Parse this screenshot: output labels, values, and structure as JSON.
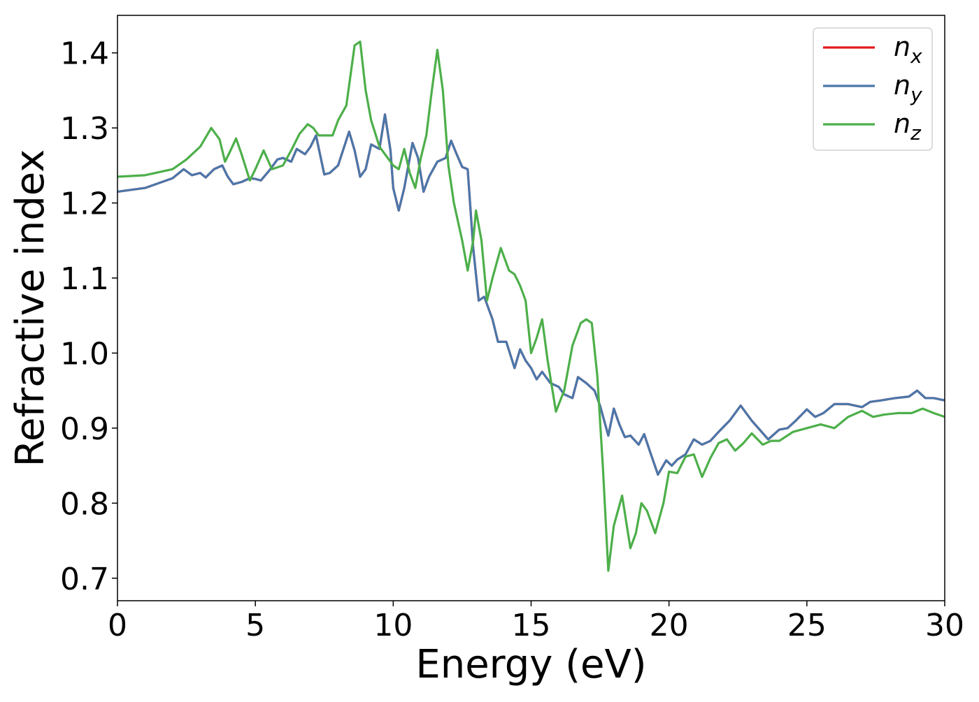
{
  "chart_data": {
    "type": "line",
    "title": "",
    "xlabel": "Energy (eV)",
    "ylabel": "Refractive index",
    "xlim": [
      0,
      30
    ],
    "ylim": [
      0.67,
      1.45
    ],
    "xticks": [
      0,
      5,
      10,
      15,
      20,
      25,
      30
    ],
    "xtick_labels": [
      "0",
      "5",
      "10",
      "15",
      "20",
      "25",
      "30"
    ],
    "yticks": [
      0.7,
      0.8,
      0.9,
      1.0,
      1.1,
      1.2,
      1.3,
      1.4
    ],
    "ytick_labels": [
      "0.7",
      "0.8",
      "0.9",
      "1.0",
      "1.1",
      "1.2",
      "1.3",
      "1.4"
    ],
    "grid": false,
    "legend_position": "top-right",
    "series": [
      {
        "name": "n_x",
        "label_base": "n",
        "label_sub": "x",
        "color": "#e41a1c",
        "x": [
          0,
          1,
          2,
          2.4,
          2.7,
          3.0,
          3.2,
          3.5,
          3.8,
          4.0,
          4.2,
          4.5,
          4.8,
          5.0,
          5.2,
          5.5,
          5.8,
          6.0,
          6.3,
          6.5,
          6.8,
          7.0,
          7.2,
          7.5,
          7.7,
          8.0,
          8.4,
          8.6,
          8.8,
          9.0,
          9.2,
          9.5,
          9.7,
          9.9,
          10.0,
          10.2,
          10.4,
          10.7,
          10.9,
          11.1,
          11.3,
          11.6,
          11.9,
          12.1,
          12.3,
          12.5,
          12.7,
          12.9,
          13.1,
          13.3,
          13.6,
          13.8,
          14.1,
          14.4,
          14.6,
          14.8,
          15.0,
          15.2,
          15.4,
          15.7,
          16.0,
          16.2,
          16.5,
          16.7,
          17.0,
          17.3,
          17.5,
          17.8,
          18.0,
          18.2,
          18.4,
          18.6,
          18.9,
          19.1,
          19.3,
          19.6,
          19.9,
          20.1,
          20.3,
          20.6,
          20.9,
          21.2,
          21.5,
          21.8,
          22.2,
          22.6,
          23.0,
          23.6,
          24.0,
          24.3,
          24.6,
          25.0,
          25.3,
          25.6,
          26.0,
          26.5,
          27.0,
          27.3,
          27.7,
          28.2,
          28.7,
          29.0,
          29.3,
          29.6,
          30.0
        ],
        "y": [
          1.215,
          1.22,
          1.233,
          1.245,
          1.237,
          1.24,
          1.234,
          1.245,
          1.25,
          1.235,
          1.225,
          1.228,
          1.233,
          1.232,
          1.23,
          1.243,
          1.258,
          1.26,
          1.255,
          1.272,
          1.265,
          1.275,
          1.29,
          1.238,
          1.24,
          1.25,
          1.295,
          1.27,
          1.235,
          1.245,
          1.278,
          1.272,
          1.318,
          1.27,
          1.22,
          1.19,
          1.22,
          1.28,
          1.26,
          1.215,
          1.235,
          1.255,
          1.26,
          1.283,
          1.265,
          1.248,
          1.245,
          1.14,
          1.07,
          1.075,
          1.045,
          1.015,
          1.015,
          0.98,
          1.005,
          0.99,
          0.98,
          0.965,
          0.975,
          0.96,
          0.955,
          0.945,
          0.94,
          0.968,
          0.96,
          0.95,
          0.93,
          0.89,
          0.926,
          0.905,
          0.888,
          0.89,
          0.878,
          0.892,
          0.87,
          0.838,
          0.857,
          0.85,
          0.858,
          0.865,
          0.885,
          0.878,
          0.883,
          0.895,
          0.91,
          0.93,
          0.91,
          0.885,
          0.898,
          0.9,
          0.91,
          0.925,
          0.915,
          0.92,
          0.932,
          0.932,
          0.928,
          0.935,
          0.937,
          0.94,
          0.942,
          0.95,
          0.94,
          0.94,
          0.937
        ]
      },
      {
        "name": "n_y",
        "label_base": "n",
        "label_sub": "y",
        "color": "#4a77aa",
        "x": [
          0,
          1,
          2,
          2.4,
          2.7,
          3.0,
          3.2,
          3.5,
          3.8,
          4.0,
          4.2,
          4.5,
          4.8,
          5.0,
          5.2,
          5.5,
          5.8,
          6.0,
          6.3,
          6.5,
          6.8,
          7.0,
          7.2,
          7.5,
          7.7,
          8.0,
          8.4,
          8.6,
          8.8,
          9.0,
          9.2,
          9.5,
          9.7,
          9.9,
          10.0,
          10.2,
          10.4,
          10.7,
          10.9,
          11.1,
          11.3,
          11.6,
          11.9,
          12.1,
          12.3,
          12.5,
          12.7,
          12.9,
          13.1,
          13.3,
          13.6,
          13.8,
          14.1,
          14.4,
          14.6,
          14.8,
          15.0,
          15.2,
          15.4,
          15.7,
          16.0,
          16.2,
          16.5,
          16.7,
          17.0,
          17.3,
          17.5,
          17.8,
          18.0,
          18.2,
          18.4,
          18.6,
          18.9,
          19.1,
          19.3,
          19.6,
          19.9,
          20.1,
          20.3,
          20.6,
          20.9,
          21.2,
          21.5,
          21.8,
          22.2,
          22.6,
          23.0,
          23.6,
          24.0,
          24.3,
          24.6,
          25.0,
          25.3,
          25.6,
          26.0,
          26.5,
          27.0,
          27.3,
          27.7,
          28.2,
          28.7,
          29.0,
          29.3,
          29.6,
          30.0
        ],
        "y": [
          1.215,
          1.22,
          1.233,
          1.245,
          1.237,
          1.24,
          1.234,
          1.245,
          1.25,
          1.235,
          1.225,
          1.228,
          1.233,
          1.232,
          1.23,
          1.243,
          1.258,
          1.26,
          1.255,
          1.272,
          1.265,
          1.275,
          1.29,
          1.238,
          1.24,
          1.25,
          1.295,
          1.27,
          1.235,
          1.245,
          1.278,
          1.272,
          1.318,
          1.27,
          1.22,
          1.19,
          1.22,
          1.28,
          1.26,
          1.215,
          1.235,
          1.255,
          1.26,
          1.283,
          1.265,
          1.248,
          1.245,
          1.14,
          1.07,
          1.075,
          1.045,
          1.015,
          1.015,
          0.98,
          1.005,
          0.99,
          0.98,
          0.965,
          0.975,
          0.96,
          0.955,
          0.945,
          0.94,
          0.968,
          0.96,
          0.95,
          0.93,
          0.89,
          0.926,
          0.905,
          0.888,
          0.89,
          0.878,
          0.892,
          0.87,
          0.838,
          0.857,
          0.85,
          0.858,
          0.865,
          0.885,
          0.878,
          0.883,
          0.895,
          0.91,
          0.93,
          0.91,
          0.885,
          0.898,
          0.9,
          0.91,
          0.925,
          0.915,
          0.92,
          0.932,
          0.932,
          0.928,
          0.935,
          0.937,
          0.94,
          0.942,
          0.95,
          0.94,
          0.94,
          0.937
        ]
      },
      {
        "name": "n_z",
        "label_base": "n",
        "label_sub": "z",
        "color": "#4daf4a",
        "x": [
          0,
          1,
          2,
          2.5,
          3.0,
          3.4,
          3.7,
          3.9,
          4.1,
          4.3,
          4.5,
          4.8,
          5.0,
          5.3,
          5.6,
          6.0,
          6.3,
          6.6,
          6.9,
          7.1,
          7.3,
          7.5,
          7.8,
          8.0,
          8.3,
          8.6,
          8.8,
          9.0,
          9.2,
          9.5,
          9.8,
          10.0,
          10.2,
          10.4,
          10.6,
          10.8,
          11.0,
          11.2,
          11.4,
          11.6,
          11.8,
          12.0,
          12.2,
          12.5,
          12.7,
          12.9,
          13.0,
          13.2,
          13.4,
          13.6,
          13.9,
          14.2,
          14.4,
          14.6,
          14.8,
          15.0,
          15.2,
          15.4,
          15.6,
          15.9,
          16.2,
          16.5,
          16.8,
          17.0,
          17.2,
          17.4,
          17.6,
          17.8,
          18.0,
          18.3,
          18.6,
          18.8,
          19.0,
          19.2,
          19.5,
          19.8,
          20.0,
          20.3,
          20.6,
          20.9,
          21.2,
          21.5,
          21.8,
          22.1,
          22.4,
          22.7,
          23.0,
          23.4,
          23.7,
          24.0,
          24.5,
          25.0,
          25.5,
          26.0,
          26.5,
          27.0,
          27.4,
          27.8,
          28.3,
          28.8,
          29.2,
          29.6,
          30.0
        ],
        "y": [
          1.235,
          1.237,
          1.245,
          1.258,
          1.275,
          1.3,
          1.285,
          1.255,
          1.27,
          1.286,
          1.265,
          1.23,
          1.245,
          1.27,
          1.245,
          1.25,
          1.27,
          1.292,
          1.305,
          1.3,
          1.29,
          1.29,
          1.29,
          1.31,
          1.33,
          1.41,
          1.415,
          1.35,
          1.31,
          1.275,
          1.26,
          1.25,
          1.245,
          1.272,
          1.24,
          1.22,
          1.26,
          1.29,
          1.35,
          1.404,
          1.35,
          1.25,
          1.2,
          1.15,
          1.11,
          1.15,
          1.19,
          1.15,
          1.07,
          1.1,
          1.14,
          1.11,
          1.105,
          1.09,
          1.07,
          1.0,
          1.02,
          1.045,
          0.99,
          0.922,
          0.95,
          1.01,
          1.04,
          1.045,
          1.04,
          0.97,
          0.85,
          0.71,
          0.77,
          0.81,
          0.74,
          0.76,
          0.8,
          0.79,
          0.76,
          0.8,
          0.842,
          0.84,
          0.862,
          0.865,
          0.835,
          0.86,
          0.88,
          0.885,
          0.87,
          0.88,
          0.893,
          0.878,
          0.883,
          0.883,
          0.895,
          0.9,
          0.905,
          0.9,
          0.915,
          0.923,
          0.915,
          0.918,
          0.92,
          0.92,
          0.926,
          0.92,
          0.915
        ]
      }
    ]
  }
}
